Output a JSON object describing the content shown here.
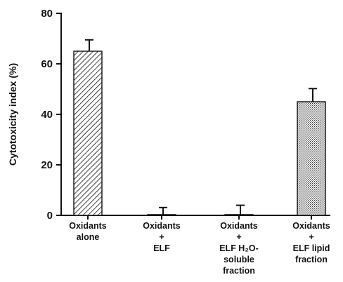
{
  "chart_data": {
    "type": "bar",
    "ylabel": "Cytotoxicity index (%)",
    "ylim": [
      0,
      80
    ],
    "yticks": [
      0,
      20,
      40,
      60,
      80
    ],
    "grid": false,
    "categories": [
      [
        "Oxidants",
        "alone"
      ],
      [
        "Oxidants",
        "+",
        "ELF"
      ],
      [
        "Oxidants",
        "+",
        "ELF H₂O-",
        "soluble",
        "fraction"
      ],
      [
        "Oxidants",
        "+",
        "ELF lipid",
        "fraction"
      ]
    ],
    "values": [
      65,
      0.3,
      0.3,
      45
    ],
    "error_upper": [
      4.5,
      2.8,
      3.7,
      5.2
    ],
    "bar_fills": [
      "diagonal-hatch",
      "white",
      "white",
      "stipple"
    ]
  }
}
